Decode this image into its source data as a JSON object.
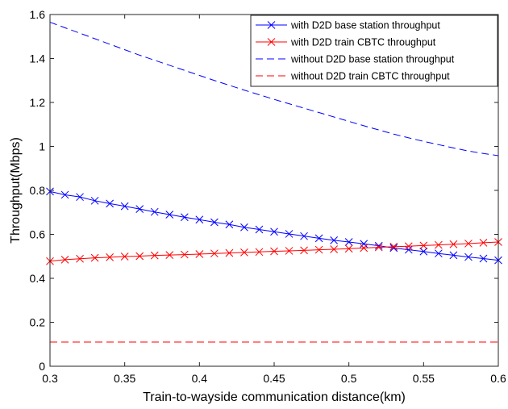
{
  "chart_data": {
    "type": "line",
    "title": "",
    "xlabel": "Train-to-wayside communication distance(km)",
    "ylabel": "Throughput(Mbps)",
    "xlim": [
      0.3,
      0.6
    ],
    "ylim": [
      0,
      1.6
    ],
    "xticks": [
      "0.3",
      "0.35",
      "0.4",
      "0.45",
      "0.5",
      "0.55",
      "0.6"
    ],
    "yticks": [
      "0",
      "0.2",
      "0.4",
      "0.6",
      "0.8",
      "1",
      "1.2",
      "1.4",
      "1.6"
    ],
    "grid": false,
    "legend_position": "top-right",
    "x": [
      0.3,
      0.31,
      0.32,
      0.33,
      0.34,
      0.35,
      0.36,
      0.37,
      0.38,
      0.39,
      0.4,
      0.41,
      0.42,
      0.43,
      0.44,
      0.45,
      0.46,
      0.47,
      0.48,
      0.49,
      0.5,
      0.51,
      0.52,
      0.53,
      0.54,
      0.55,
      0.56,
      0.57,
      0.58,
      0.59,
      0.6
    ],
    "series": [
      {
        "name": "with D2D base station throughput",
        "color": "#0000ff",
        "dash": "solid",
        "marker": "x",
        "values": [
          0.795,
          0.78,
          0.77,
          0.753,
          0.74,
          0.728,
          0.715,
          0.702,
          0.69,
          0.678,
          0.667,
          0.655,
          0.645,
          0.632,
          0.622,
          0.612,
          0.602,
          0.592,
          0.582,
          0.573,
          0.565,
          0.557,
          0.548,
          0.538,
          0.53,
          0.522,
          0.513,
          0.505,
          0.497,
          0.49,
          0.482
        ]
      },
      {
        "name": "with D2D train CBTC throughput",
        "color": "#ff0000",
        "dash": "solid",
        "marker": "x",
        "values": [
          0.478,
          0.485,
          0.489,
          0.493,
          0.496,
          0.499,
          0.501,
          0.504,
          0.506,
          0.508,
          0.51,
          0.513,
          0.515,
          0.518,
          0.52,
          0.523,
          0.525,
          0.527,
          0.53,
          0.532,
          0.535,
          0.538,
          0.541,
          0.544,
          0.546,
          0.549,
          0.552,
          0.555,
          0.558,
          0.562,
          0.565
        ]
      },
      {
        "name": "without D2D base station throughput",
        "color": "#0000ff",
        "dash": "dashed",
        "marker": "none",
        "values": [
          1.565,
          1.54,
          1.515,
          1.49,
          1.465,
          1.44,
          1.415,
          1.392,
          1.369,
          1.346,
          1.323,
          1.3,
          1.278,
          1.256,
          1.235,
          1.214,
          1.194,
          1.174,
          1.154,
          1.134,
          1.114,
          1.094,
          1.075,
          1.056,
          1.039,
          1.023,
          1.008,
          0.993,
          0.979,
          0.968,
          0.958
        ]
      },
      {
        "name": "without D2D train CBTC throughput",
        "color": "#ff0000",
        "dash": "dashed",
        "marker": "none",
        "values": [
          0.11,
          0.11,
          0.11,
          0.11,
          0.11,
          0.11,
          0.11,
          0.11,
          0.11,
          0.11,
          0.11,
          0.11,
          0.11,
          0.11,
          0.11,
          0.11,
          0.11,
          0.11,
          0.11,
          0.11,
          0.11,
          0.11,
          0.11,
          0.11,
          0.11,
          0.11,
          0.11,
          0.11,
          0.11,
          0.11,
          0.11
        ]
      }
    ]
  }
}
